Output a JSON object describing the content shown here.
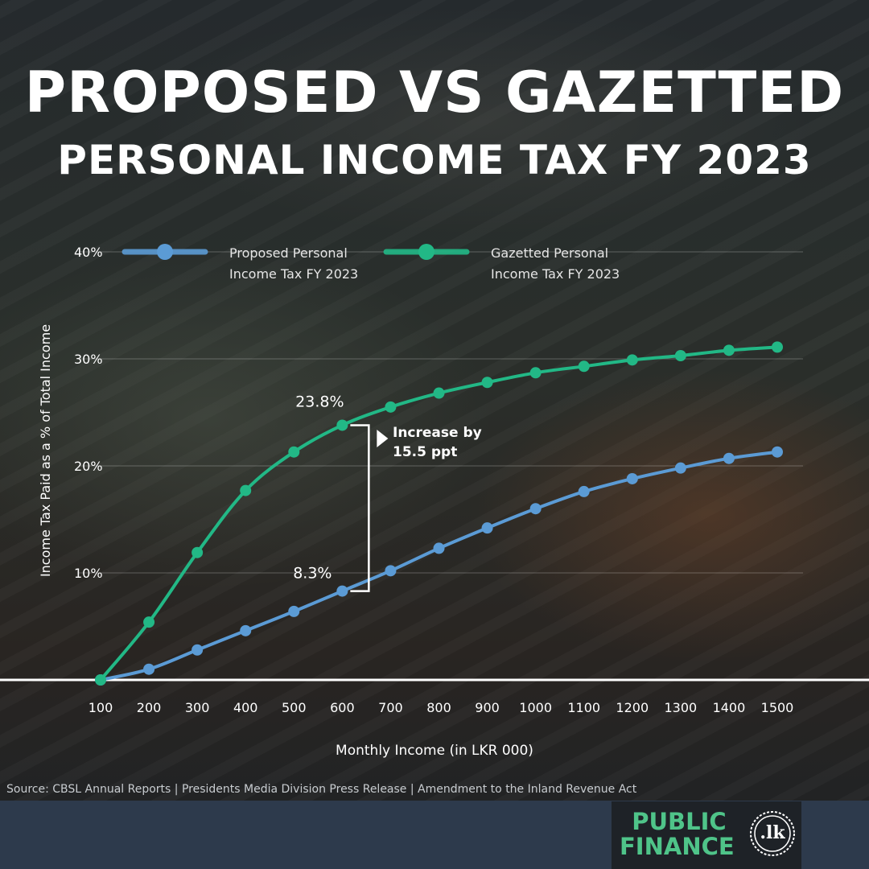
{
  "title": {
    "line1": "PROPOSED VS GAZETTED",
    "line2": "PERSONAL INCOME TAX FY 2023"
  },
  "chart_data": {
    "type": "line",
    "xlabel": "Monthly Income (in LKR 000)",
    "ylabel": "Income Tax Paid as a % of Total Income",
    "ylim": [
      0,
      40
    ],
    "yticks": [
      10,
      20,
      30,
      40
    ],
    "ytick_labels": [
      "10%",
      "20%",
      "30%",
      "40%"
    ],
    "grid": true,
    "legend_position": "top",
    "categories": [
      "100",
      "200",
      "300",
      "400",
      "500",
      "600",
      "700",
      "800",
      "900",
      "1000",
      "1100",
      "1200",
      "1300",
      "1400",
      "1500"
    ],
    "series": [
      {
        "name": "Proposed Personal Income Tax FY 2023",
        "name_lines": [
          "Proposed Personal",
          "Income Tax FY 2023"
        ],
        "color": "#5b9bd5",
        "values": [
          0,
          1.0,
          2.8,
          4.6,
          6.4,
          8.3,
          10.2,
          12.3,
          14.2,
          16.0,
          17.6,
          18.8,
          19.8,
          20.7,
          21.3
        ]
      },
      {
        "name": "Gazetted Personal Income Tax FY 2023",
        "name_lines": [
          "Gazetted Personal",
          "Income Tax FY 2023"
        ],
        "color": "#22b886",
        "values": [
          0,
          5.4,
          11.9,
          17.7,
          21.3,
          23.8,
          25.5,
          26.8,
          27.8,
          28.7,
          29.3,
          29.9,
          30.3,
          30.8,
          31.1
        ]
      }
    ],
    "annotations": {
      "high_label": "23.8%",
      "low_label": "8.3%",
      "increase_line1": "Increase by",
      "increase_line2": "15.5 ppt",
      "index": 5
    }
  },
  "source": "Source: CBSL Annual Reports | Presidents Media Division Press Release | Amendment to the Inland Revenue Act",
  "logo": {
    "line1": "PUBLIC",
    "line2": "FINANCE",
    "badge": ".lk"
  }
}
